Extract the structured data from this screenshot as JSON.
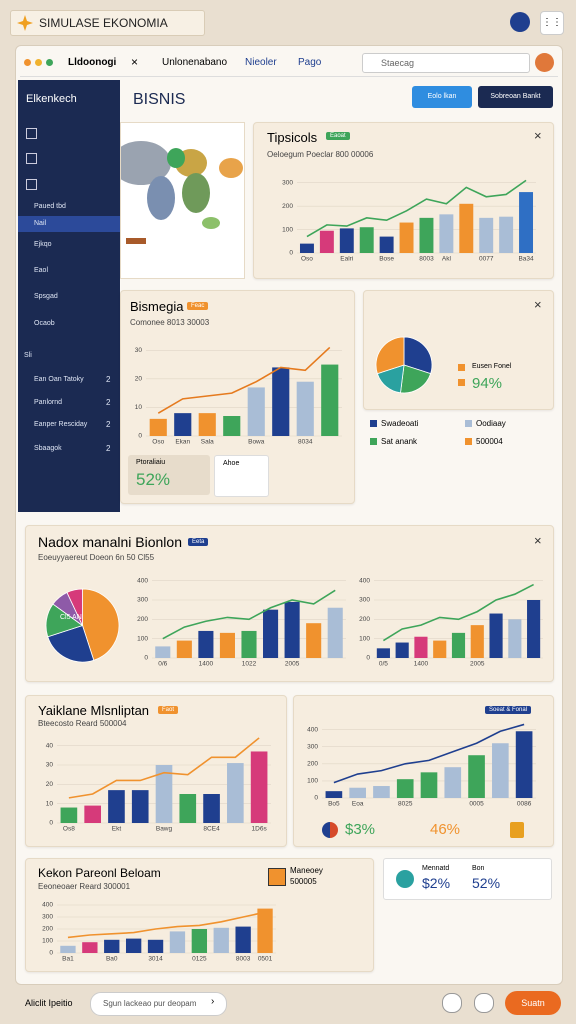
{
  "app": {
    "title": "SIMULASE EKONOMIA"
  },
  "tabs": [
    "Lldoonogi",
    "Unlonenabano",
    "Nieoler",
    "Pago"
  ],
  "search": "Staecag",
  "sidebar": {
    "title": "Elkenkech",
    "items": [
      "Paued tbd",
      "Nail",
      "Ejkqo",
      "Eaol",
      "Spsgad",
      "Ocaob"
    ],
    "section": "Sli",
    "groups": [
      {
        "label": "Ean Oan Tatoky",
        "count": "2"
      },
      {
        "label": "Panlornd",
        "count": "2"
      },
      {
        "label": "Eanper Resciday",
        "count": "2"
      },
      {
        "label": "Sbaagok",
        "count": "2"
      }
    ]
  },
  "header": {
    "title": "BISNIS",
    "buttons": [
      "Eolo lkan",
      "Sobreoan Bankt"
    ]
  },
  "panels": [
    {
      "title": "Tipsicols",
      "badge": "Eaoat",
      "subtitle": "Oeloegum Poeclar 800 00006",
      "chart": {
        "ylim": [
          0,
          350
        ],
        "yticks": [
          0,
          100,
          200,
          300
        ],
        "categories": [
          "Oso",
          null,
          "Ealri",
          null,
          "Bose",
          null,
          "8003",
          "Akl",
          null,
          "0077",
          null,
          "Ba34"
        ],
        "bars": [
          40,
          95,
          105,
          110,
          70,
          130,
          150,
          165,
          210,
          150,
          155,
          260
        ],
        "colors": [
          "#1f3f8f",
          "#d63a7a",
          "#1f3f8f",
          "#3ea55a",
          "#1f3f8f",
          "#f0922e",
          "#3ea55a",
          "#a9bdd6",
          "#f0922e",
          "#a9bdd6",
          "#a9bdd6",
          "#2f6fc4"
        ],
        "line": [
          70,
          120,
          115,
          150,
          140,
          180,
          230,
          210,
          280,
          240,
          250,
          310
        ],
        "line_color": "#3ea55a"
      }
    },
    {
      "title": "Bismegia",
      "badge": "Feac",
      "subtitle": "Comonee 8013 30003",
      "stat_label": "Ptoraliaiu",
      "stat": "52%",
      "icon_label": "Ahoe",
      "chart": {
        "ylim": [
          0,
          35
        ],
        "yticks": [
          0,
          10,
          20,
          30
        ],
        "categories": [
          "Oso",
          "Ekan",
          "Sala",
          null,
          "Bowa",
          null,
          "8034",
          null
        ],
        "bars": [
          6,
          8,
          8,
          7,
          17,
          24,
          19,
          25
        ],
        "colors": [
          "#f0922e",
          "#1f3f8f",
          "#f0922e",
          "#3ea55a",
          "#a9bdd6",
          "#1f3f8f",
          "#a9bdd6",
          "#3ea55a"
        ],
        "line": [
          8,
          13,
          14,
          15,
          19,
          24,
          23,
          31
        ],
        "line_color": "#e57a1e"
      }
    },
    {
      "label": "Eusen Fonel",
      "stat": "94%",
      "pie": {
        "values": [
          30,
          22,
          18,
          30
        ],
        "colors": [
          "#1f3f8f",
          "#3ea55a",
          "#2aa1a0",
          "#f0922e"
        ]
      },
      "legend": [
        {
          "name": "Swadeoati",
          "color": "#1f3f8f"
        },
        {
          "name": "Oodiaay",
          "color": "#a9bdd6"
        },
        {
          "name": "Sat anank",
          "color": "#3ea55a"
        },
        {
          "name": "500004",
          "color": "#f0922e"
        }
      ]
    },
    {
      "title": "Nadox manalni Bionlon",
      "badge": "Eeta",
      "subtitle": "Eoeuyyaereut Doeon 6n 50 Cl55",
      "pie_label": "Cl5 AN",
      "pie": {
        "values": [
          45,
          25,
          15,
          8,
          7
        ],
        "colors": [
          "#f0922e",
          "#1f3f8f",
          "#3ea55a",
          "#8e5aa8",
          "#d63a7a"
        ]
      },
      "chart": {
        "ylim": [
          0,
          450
        ],
        "yticks": [
          0,
          100,
          200,
          300,
          400
        ],
        "categories": [
          "0/6",
          null,
          "1400",
          null,
          "1022",
          null,
          "2005",
          null,
          null
        ],
        "bars": [
          60,
          90,
          140,
          130,
          140,
          250,
          290,
          180,
          260
        ],
        "colors": [
          "#a9bdd6",
          "#f0922e",
          "#1f3f8f",
          "#f0922e",
          "#3ea55a",
          "#1f3f8f",
          "#1f3f8f",
          "#f0922e",
          "#a9bdd6"
        ],
        "line": [
          100,
          160,
          190,
          210,
          200,
          260,
          300,
          280,
          350
        ],
        "line_color": "#3ea55a"
      },
      "chart2": {
        "ylim": [
          0,
          450
        ],
        "yticks": [
          0,
          100,
          200,
          300,
          400
        ],
        "categories": [
          "0/5",
          null,
          "1400",
          null,
          null,
          "2005",
          null,
          null,
          null
        ],
        "bars": [
          50,
          80,
          110,
          90,
          130,
          170,
          230,
          200,
          300
        ],
        "colors": [
          "#1f3f8f",
          "#1f3f8f",
          "#d63a7a",
          "#f0922e",
          "#3ea55a",
          "#f0922e",
          "#1f3f8f",
          "#a9bdd6",
          "#1f3f8f"
        ],
        "line": [
          90,
          150,
          170,
          210,
          200,
          240,
          300,
          330,
          380
        ],
        "line_color": "#3ea55a"
      }
    },
    {
      "title": "Yaiklane Mlsnliptan",
      "badge": "Faot",
      "subtitle": "Bteecosto Reard 500004",
      "chart": {
        "ylim": [
          0,
          45
        ],
        "yticks": [
          0,
          10,
          20,
          30,
          40
        ],
        "categories": [
          "Os8",
          null,
          "Ekt",
          null,
          "Bawg",
          null,
          "8CE4",
          null,
          "1D6s"
        ],
        "bars": [
          8,
          9,
          17,
          17,
          30,
          15,
          15,
          31,
          37
        ],
        "colors": [
          "#3ea55a",
          "#d63a7a",
          "#1f3f8f",
          "#1f3f8f",
          "#a9bdd6",
          "#3ea55a",
          "#1f3f8f",
          "#a9bdd6",
          "#d63a7a"
        ],
        "line": [
          13,
          15,
          22,
          22,
          26,
          25,
          34,
          34,
          44
        ],
        "line_color": "#f0922e"
      }
    },
    {
      "badge": "Soeat & Fonal",
      "stats": [
        "$3%",
        "46%"
      ],
      "chart": {
        "ylim": [
          0,
          450
        ],
        "yticks": [
          0,
          100,
          200,
          300,
          400
        ],
        "categories": [
          "Bo5",
          "Eoa",
          null,
          "8025",
          null,
          null,
          "0005",
          null,
          "0086"
        ],
        "bars": [
          40,
          60,
          70,
          110,
          150,
          180,
          250,
          320,
          390
        ],
        "colors": [
          "#1f3f8f",
          "#a9bdd6",
          "#a9bdd6",
          "#3ea55a",
          "#3ea55a",
          "#a9bdd6",
          "#3ea55a",
          "#a9bdd6",
          "#1f3f8f"
        ],
        "line": [
          90,
          140,
          160,
          200,
          220,
          270,
          320,
          390,
          430
        ],
        "line_color": "#1f3f8f"
      }
    },
    {
      "title": "Kekon Pareonl Beloam",
      "subtitle": "Eeoneoaer Reard 300001",
      "legend_name": "Maneoey",
      "legend_value": "500005",
      "chart": {
        "ylim": [
          0,
          450
        ],
        "yticks": [
          0,
          100,
          200,
          300,
          400
        ],
        "categories": [
          "Ba1",
          null,
          "Ba0",
          null,
          "3014",
          null,
          "0125",
          null,
          "8003",
          "0501"
        ],
        "bars": [
          60,
          90,
          110,
          120,
          110,
          180,
          200,
          210,
          220,
          370
        ],
        "colors": [
          "#a9bdd6",
          "#d63a7a",
          "#1f3f8f",
          "#1f3f8f",
          "#1f3f8f",
          "#a9bdd6",
          "#3ea55a",
          "#a9bdd6",
          "#1f3f8f",
          "#f0922e"
        ],
        "line": [
          130,
          150,
          160,
          170,
          200,
          220,
          230,
          260,
          300,
          340
        ],
        "line_color": "#f0922e"
      }
    },
    {
      "items": [
        {
          "name": "Mennatd",
          "value": "$2%"
        },
        {
          "name": "Bon",
          "value": "52%"
        }
      ]
    }
  ],
  "footer": {
    "label": "Aliclit Ipeitio",
    "input": "Sgun lackeao pur deopam",
    "button": "Suatn"
  }
}
